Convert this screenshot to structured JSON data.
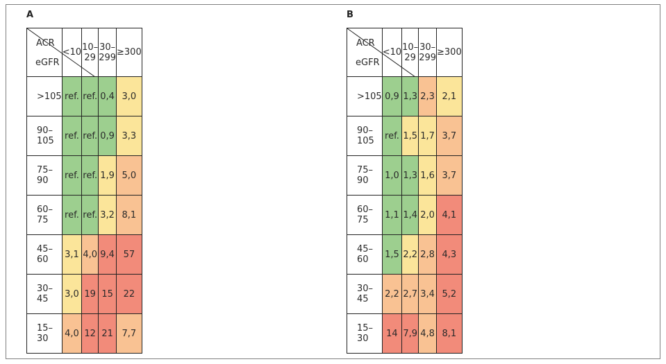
{
  "chart_data": [
    {
      "type": "heatmap",
      "panel_label": "A",
      "corner_col_label": "ACR",
      "corner_row_label": "eGFR",
      "columns": [
        "<10",
        "10–29",
        "30–299",
        "≥300"
      ],
      "rows": [
        "&gt;105",
        "90–105",
        "75–90",
        "60–75",
        "45–60",
        "30–45",
        "15–30"
      ],
      "values": [
        [
          "ref.",
          "ref.",
          "0,4",
          "3,0"
        ],
        [
          "ref.",
          "ref.",
          "0,9",
          "3,3"
        ],
        [
          "ref.",
          "ref.",
          "1,9",
          "5,0"
        ],
        [
          "ref.",
          "ref.",
          "3,2",
          "8,1"
        ],
        [
          "3,1",
          "4,0",
          "9,4",
          "57"
        ],
        [
          "3,0",
          "19",
          "15",
          "22"
        ],
        [
          "4,0",
          "12",
          "21",
          "7,7"
        ]
      ],
      "cell_colors": [
        [
          "green",
          "green",
          "green",
          "yellow"
        ],
        [
          "green",
          "green",
          "green",
          "yellow"
        ],
        [
          "green",
          "green",
          "yellow",
          "orange"
        ],
        [
          "green",
          "green",
          "yellow",
          "orange"
        ],
        [
          "yellow",
          "orange",
          "red",
          "red"
        ],
        [
          "yellow",
          "red",
          "red",
          "red"
        ],
        [
          "orange",
          "red",
          "red",
          "orange"
        ]
      ]
    },
    {
      "type": "heatmap",
      "panel_label": "B",
      "corner_col_label": "ACR",
      "corner_row_label": "eGFR",
      "columns": [
        "<10",
        "10–29",
        "30–299",
        "≥300"
      ],
      "rows": [
        "&gt;105",
        "90–105",
        "75–90",
        "60–75",
        "45–60",
        "30–45",
        "15–30"
      ],
      "values": [
        [
          "0,9",
          "1,3",
          "2,3",
          "2,1"
        ],
        [
          "ref.",
          "1,5",
          "1,7",
          "3,7"
        ],
        [
          "1,0",
          "1,3",
          "1,6",
          "3,7"
        ],
        [
          "1,1",
          "1,4",
          "2,0",
          "4,1"
        ],
        [
          "1,5",
          "2,2",
          "2,8",
          "4,3"
        ],
        [
          "2,2",
          "2,7",
          "3,4",
          "5,2"
        ],
        [
          "14",
          "7,9",
          "4,8",
          "8,1"
        ]
      ],
      "cell_colors": [
        [
          "green",
          "green",
          "orange",
          "yellow"
        ],
        [
          "green",
          "yellow",
          "yellow",
          "orange"
        ],
        [
          "green",
          "green",
          "yellow",
          "orange"
        ],
        [
          "green",
          "green",
          "yellow",
          "red"
        ],
        [
          "green",
          "yellow",
          "orange",
          "red"
        ],
        [
          "orange",
          "orange",
          "orange",
          "red"
        ],
        [
          "red",
          "red",
          "orange",
          "red"
        ]
      ]
    }
  ],
  "palette": {
    "green": "#9dcf8f",
    "yellow": "#fbe59a",
    "orange": "#f9c293",
    "red": "#f28b7a"
  }
}
